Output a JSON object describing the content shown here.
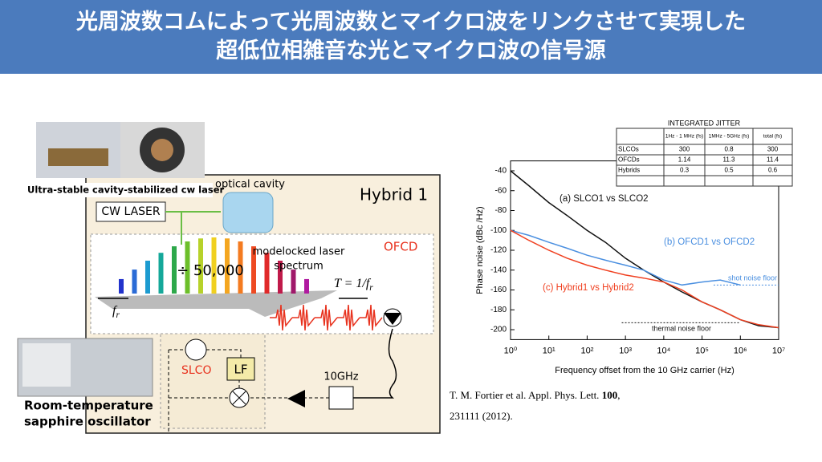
{
  "header": {
    "title_lines": [
      "光周波数コムによって光周波数とマイクロ波をリンクさせて実現した",
      "超低位相雑音な光とマイクロ波の信号源"
    ]
  },
  "diagram": {
    "photo_caption": "Ultra-stable cavity-stabilized cw laser",
    "cavity_label": "optical cavity",
    "hybrid_label": "Hybrid 1",
    "laser_label": "CW LASER",
    "ofcd_label": "OFCD",
    "spectrum_lines": [
      "modelocked laser",
      "spectrum"
    ],
    "divider_label": "÷ 50,000",
    "fr_label": {
      "base": "f",
      "sub": "r"
    },
    "period_label": {
      "base": "T = 1/f",
      "sub": "r"
    },
    "filter_label": "10GHz",
    "slco_label": "SLCO",
    "lf_label": "LF",
    "oscillator_lines": [
      "Room-temperature",
      "sapphire oscillator"
    ]
  },
  "table": {
    "title": "INTEGRATED JITTER",
    "columns": [
      "1Hz - 1 MHz (fs)",
      "1MHz - 5GHz (fs)",
      "total (fs)"
    ],
    "rows": [
      [
        "SLCOs",
        "300",
        "0.8",
        "300"
      ],
      [
        "OFCDs",
        "1.14",
        "11.3",
        "11.4"
      ],
      [
        "Hybrids",
        "0.3",
        "0.5",
        "0.6"
      ]
    ]
  },
  "citation": {
    "line1": [
      "T. M. Fortier et al. Appl. Phys. Lett. ",
      "100",
      ","
    ],
    "line2": "231111 (2012)."
  },
  "chart_data": {
    "type": "line",
    "x_label": "Frequency offset from the 10 GHz carrier (Hz)",
    "y_label": "Phase noise (dBc /Hz)",
    "log_x": true,
    "x": [
      1,
      3,
      10,
      30,
      100,
      300,
      1000,
      3000,
      10000,
      30000,
      100000,
      300000,
      1000000,
      3000000,
      10000000
    ],
    "series": [
      {
        "name": "(a) SLCO1 vs SLCO2",
        "color": "#111111",
        "values": [
          -40,
          -55,
          -72,
          -85,
          -100,
          -112,
          -128,
          -140,
          -152,
          -162,
          -172,
          -180,
          -190,
          -196,
          -198
        ]
      },
      {
        "name": "(b) OFCD1 vs OFCD2",
        "color": "#4a8fe0",
        "values": [
          -100,
          -105,
          -112,
          -118,
          -125,
          -130,
          -135,
          -140,
          -150,
          -155,
          -152,
          -150,
          -155,
          null,
          null
        ]
      },
      {
        "name": "(c) Hybrid1 vs Hybrid2",
        "color": "#f04020",
        "values": [
          -100,
          -110,
          -120,
          -128,
          -135,
          -140,
          -145,
          -148,
          -152,
          -160,
          -172,
          -180,
          -190,
          -195,
          -198
        ]
      }
    ],
    "noise_floors": [
      {
        "label": "shot noise floor",
        "value": -155,
        "color": "#4a8fe0"
      },
      {
        "label": "thermal noise floor",
        "value": -193,
        "color": "#111111"
      }
    ],
    "xlim": [
      1,
      10000000
    ],
    "xticks": [
      {
        "value": 1,
        "label": "10⁰"
      },
      {
        "value": 10,
        "label": "10¹"
      },
      {
        "value": 100,
        "label": "10²"
      },
      {
        "value": 1000,
        "label": "10³"
      },
      {
        "value": 10000,
        "label": "10⁴"
      },
      {
        "value": 100000,
        "label": "10⁵"
      },
      {
        "value": 1000000,
        "label": "10⁶"
      },
      {
        "value": 10000000,
        "label": "10⁷"
      }
    ],
    "ylim": [
      -210,
      -30
    ],
    "yticks": [
      -40,
      -60,
      -80,
      -100,
      -120,
      -140,
      -160,
      -180,
      -200
    ]
  }
}
